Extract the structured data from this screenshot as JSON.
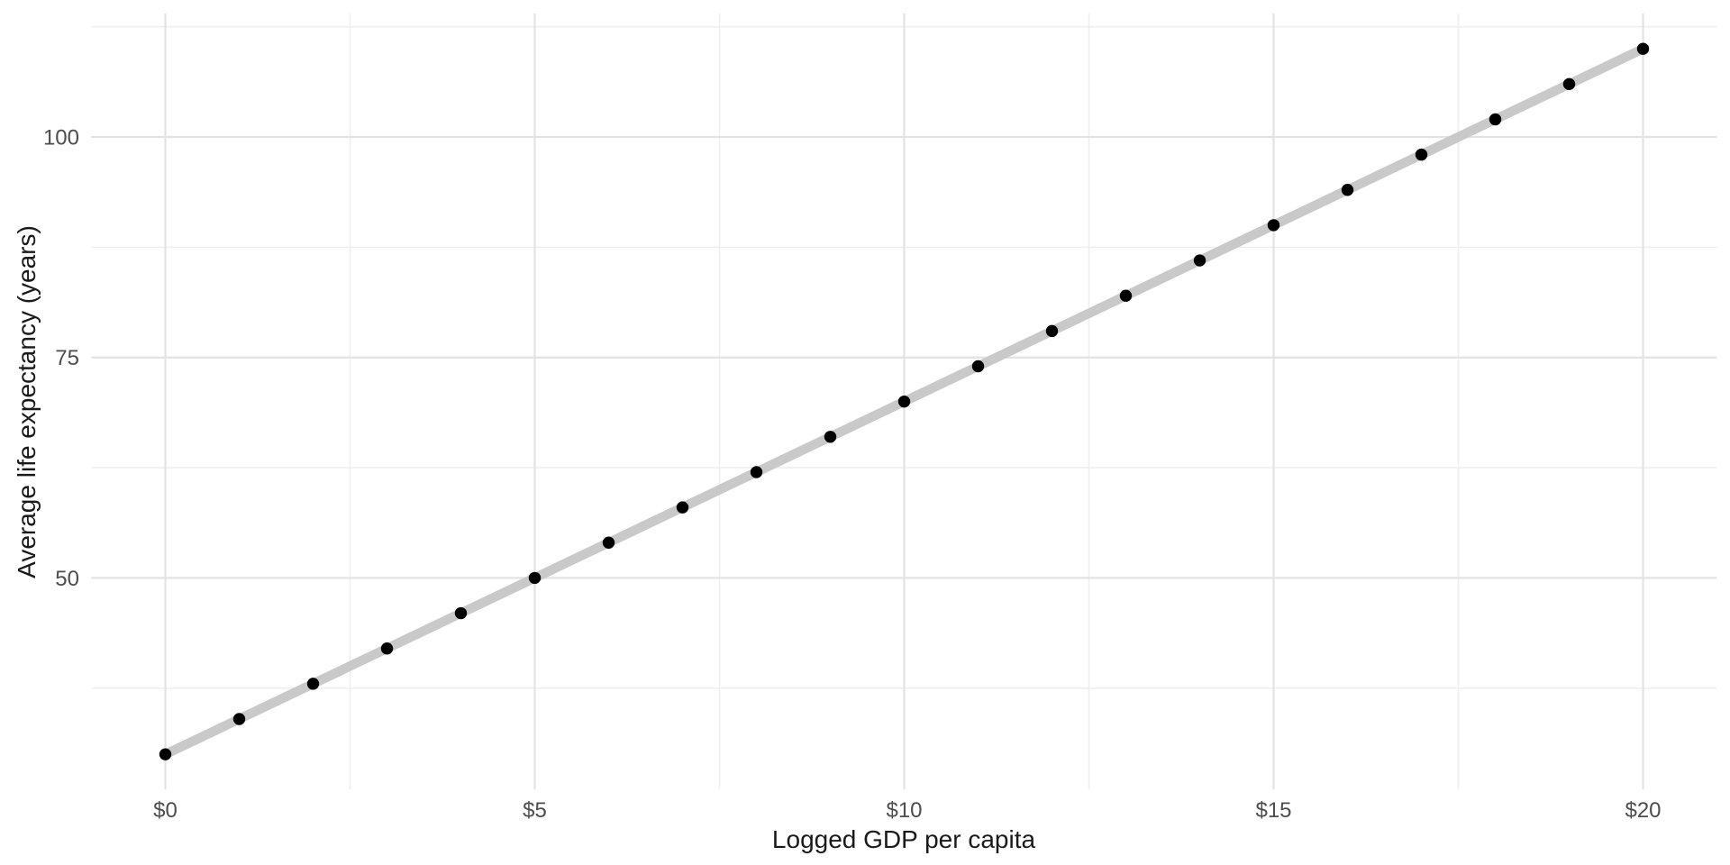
{
  "page": {
    "background": "#ffffff"
  },
  "chart_data": {
    "type": "scatter",
    "title": "",
    "xlabel": "Logged GDP per capita",
    "ylabel": "Average life expectancy (years)",
    "x": [
      0,
      1,
      2,
      3,
      4,
      5,
      6,
      7,
      8,
      9,
      10,
      11,
      12,
      13,
      14,
      15,
      16,
      17,
      18,
      19,
      20
    ],
    "y": [
      30,
      34,
      38,
      42,
      46,
      50,
      54,
      58,
      62,
      66,
      70,
      74,
      78,
      82,
      86,
      90,
      94,
      98,
      102,
      106,
      110
    ],
    "trend_line": {
      "x_start": 0,
      "y_start": 30,
      "x_end": 20,
      "y_end": 110
    },
    "x_ticks": {
      "values": [
        0,
        5,
        10,
        15,
        20
      ],
      "labels": [
        "$0",
        "$5",
        "$10",
        "$15",
        "$20"
      ]
    },
    "y_ticks": {
      "values": [
        50,
        75,
        100
      ],
      "labels": [
        "50",
        "75",
        "100"
      ]
    },
    "x_minor_gridlines": [
      2.5,
      7.5,
      12.5,
      17.5
    ],
    "y_minor_gridlines": [
      37.5,
      62.5,
      87.5,
      112.5
    ],
    "xlim": [
      -1,
      21
    ],
    "ylim": [
      26,
      114
    ],
    "grid": "on",
    "legend": "none",
    "colors": {
      "background": "#ffffff",
      "point": "#000000",
      "trend_line": "#c9c9c9",
      "grid_major": "#e3e3e3",
      "grid_minor": "#efefef",
      "tick_label": "#4d4d4d",
      "axis_title": "#1a1a1a"
    }
  }
}
